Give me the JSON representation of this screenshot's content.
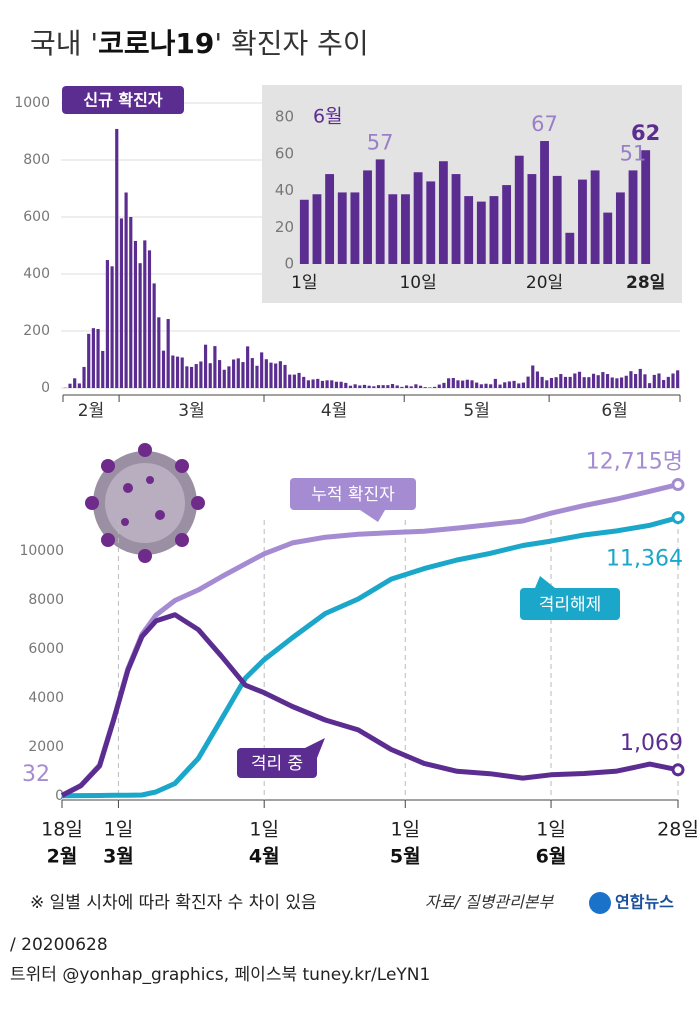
{
  "header": {
    "title": {
      "prefix": "국내 '",
      "emphasis": "코로나19",
      "suffix": "' 확진자 추이"
    }
  },
  "chart_data": [
    {
      "type": "bar",
      "name": "신규 확진자",
      "color": "#5c2d91",
      "grid": true,
      "ylim": [
        0,
        1000
      ],
      "yticks": [
        0,
        200,
        400,
        600,
        800,
        1000
      ],
      "categories": [
        "2월",
        "2월",
        "2월",
        "2월",
        "2월",
        "2월",
        "2월",
        "2월",
        "2월",
        "2월",
        "2월",
        "2월",
        "3월",
        "3월",
        "3월",
        "3월",
        "3월",
        "3월",
        "3월",
        "3월",
        "3월",
        "3월",
        "3월",
        "3월",
        "3월",
        "3월",
        "3월",
        "3월",
        "3월",
        "3월",
        "3월",
        "3월",
        "3월",
        "3월",
        "3월",
        "3월",
        "3월",
        "3월",
        "3월",
        "3월",
        "3월",
        "3월",
        "3월",
        "4월",
        "4월",
        "4월",
        "4월",
        "4월",
        "4월",
        "4월",
        "4월",
        "4월",
        "4월",
        "4월",
        "4월",
        "4월",
        "4월",
        "4월",
        "4월",
        "4월",
        "4월",
        "4월",
        "4월",
        "4월",
        "4월",
        "4월",
        "4월",
        "4월",
        "4월",
        "4월",
        "4월",
        "4월",
        "4월",
        "5월",
        "5월",
        "5월",
        "5월",
        "5월",
        "5월",
        "5월",
        "5월",
        "5월",
        "5월",
        "5월",
        "5월",
        "5월",
        "5월",
        "5월",
        "5월",
        "5월",
        "5월",
        "5월",
        "5월",
        "5월",
        "5월",
        "5월",
        "5월",
        "5월",
        "5월",
        "5월",
        "5월",
        "5월",
        "5월",
        "5월",
        "6월",
        "6월",
        "6월",
        "6월",
        "6월",
        "6월",
        "6월",
        "6월",
        "6월",
        "6월",
        "6월",
        "6월",
        "6월",
        "6월",
        "6월",
        "6월",
        "6월",
        "6월",
        "6월",
        "6월",
        "6월",
        "6월",
        "6월",
        "6월",
        "6월",
        "6월",
        "6월",
        "6월"
      ],
      "values": [
        1,
        15,
        34,
        16,
        74,
        190,
        210,
        207,
        130,
        449,
        427,
        909,
        595,
        686,
        600,
        516,
        438,
        518,
        483,
        367,
        248,
        131,
        242,
        114,
        110,
        107,
        76,
        74,
        84,
        93,
        152,
        87,
        147,
        98,
        64,
        76,
        100,
        104,
        91,
        146,
        105,
        78,
        125,
        101,
        89,
        86,
        94,
        81,
        47,
        47,
        53,
        39,
        27,
        30,
        32,
        25,
        27,
        27,
        22,
        22,
        18,
        8,
        13,
        9,
        11,
        8,
        6,
        10,
        10,
        10,
        14,
        9,
        4,
        9,
        6,
        13,
        8,
        3,
        2,
        4,
        12,
        18,
        34,
        35,
        27,
        26,
        29,
        27,
        19,
        13,
        15,
        13,
        32,
        12,
        20,
        23,
        25,
        16,
        19,
        40,
        79,
        58,
        39,
        27,
        35,
        38,
        49,
        39,
        39,
        51,
        57,
        38,
        38,
        50,
        45,
        56,
        49,
        37,
        34,
        37,
        43,
        59,
        49,
        67,
        48,
        17,
        46,
        51,
        28,
        39,
        51,
        62
      ]
    },
    {
      "type": "bar",
      "period_label": "6월",
      "color": "#5c2d91",
      "grid": false,
      "ylim": [
        0,
        85
      ],
      "yticks": [
        0,
        20,
        40,
        60,
        80
      ],
      "categories": [
        "1일",
        null,
        null,
        null,
        null,
        null,
        null,
        null,
        null,
        "10일",
        null,
        null,
        null,
        null,
        null,
        null,
        null,
        null,
        null,
        "20일",
        null,
        null,
        null,
        null,
        null,
        null,
        null,
        "28일"
      ],
      "values": [
        35,
        38,
        49,
        39,
        39,
        51,
        57,
        38,
        38,
        50,
        45,
        56,
        49,
        37,
        34,
        37,
        43,
        59,
        49,
        67,
        48,
        17,
        46,
        51,
        28,
        39,
        51,
        62
      ],
      "labeled_points": [
        6,
        19,
        26,
        27
      ]
    },
    {
      "type": "line",
      "grid": false,
      "ylim": [
        0,
        13000
      ],
      "yticks": [
        0,
        2000,
        4000,
        6000,
        8000,
        10000
      ],
      "xlim": [
        "02-18",
        "06-28"
      ],
      "xticks": [
        {
          "value": "02-18",
          "label": "18일"
        },
        {
          "value": "03-01",
          "label": "1일"
        },
        {
          "value": "04-01",
          "label": "1일"
        },
        {
          "value": "05-01",
          "label": "1일"
        },
        {
          "value": "06-01",
          "label": "1일"
        },
        {
          "value": "06-28",
          "label": "28일"
        }
      ],
      "xtick_months": [
        "2월",
        "3월",
        "4월",
        "5월",
        "6월",
        null
      ],
      "x": [
        "02-18",
        "02-22",
        "02-26",
        "02-29",
        "03-03",
        "03-06",
        "03-09",
        "03-13",
        "03-18",
        "03-23",
        "03-28",
        "04-01",
        "04-07",
        "04-14",
        "04-21",
        "04-28",
        "05-05",
        "05-12",
        "05-19",
        "05-26",
        "06-01",
        "06-08",
        "06-15",
        "06-22",
        "06-28"
      ],
      "series": [
        {
          "name": "누적 확진자",
          "color": "#a58cd2",
          "values": [
            32,
            433,
            1261,
            3150,
            5186,
            6593,
            7382,
            7979,
            8413,
            8961,
            9478,
            9887,
            10331,
            10564,
            10683,
            10752,
            10806,
            10936,
            11078,
            11225,
            11541,
            11852,
            12121,
            12438,
            12715
          ],
          "value_labels": [
            "32",
            null,
            null,
            null,
            null,
            null,
            null,
            null,
            null,
            null,
            null,
            null,
            null,
            null,
            null,
            null,
            null,
            null,
            null,
            null,
            null,
            null,
            null,
            null,
            "12,715명"
          ]
        },
        {
          "name": "격리해제",
          "color": "#1aa7c9",
          "values": [
            12,
            16,
            22,
            27,
            30,
            41,
            166,
            510,
            1540,
            3166,
            4811,
            5567,
            6463,
            7447,
            8042,
            8854,
            9283,
            9632,
            9904,
            10226,
            10405,
            10654,
            10822,
            11048,
            11364
          ],
          "value_labels": [
            null,
            null,
            null,
            null,
            null,
            null,
            null,
            null,
            null,
            null,
            null,
            null,
            null,
            null,
            null,
            null,
            null,
            null,
            null,
            null,
            null,
            null,
            null,
            null,
            "11,364"
          ]
        },
        {
          "name": "격리 중",
          "color": "#5c2d91",
          "values": [
            19,
            416,
            1227,
            3107,
            5125,
            6508,
            7148,
            7400,
            6789,
            5684,
            4523,
            4216,
            3654,
            3100,
            2700,
            1900,
            1332,
            1008,
            911,
            730,
            864,
            920,
            1017,
            1300,
            1069
          ],
          "value_labels": [
            null,
            null,
            null,
            null,
            null,
            null,
            null,
            null,
            null,
            null,
            null,
            null,
            null,
            null,
            null,
            null,
            null,
            null,
            null,
            null,
            null,
            null,
            null,
            null,
            "1,069"
          ]
        }
      ]
    }
  ],
  "footer": {
    "note": "※ 일별 시차에 따라 확진자 수 차이 있음",
    "source": "자료/ 질병관리본부",
    "logo": "연합뉴스",
    "date": "/ 20200628",
    "social": "트위터 @yonhap_graphics, 페이스북 tuney.kr/LeYN1"
  }
}
